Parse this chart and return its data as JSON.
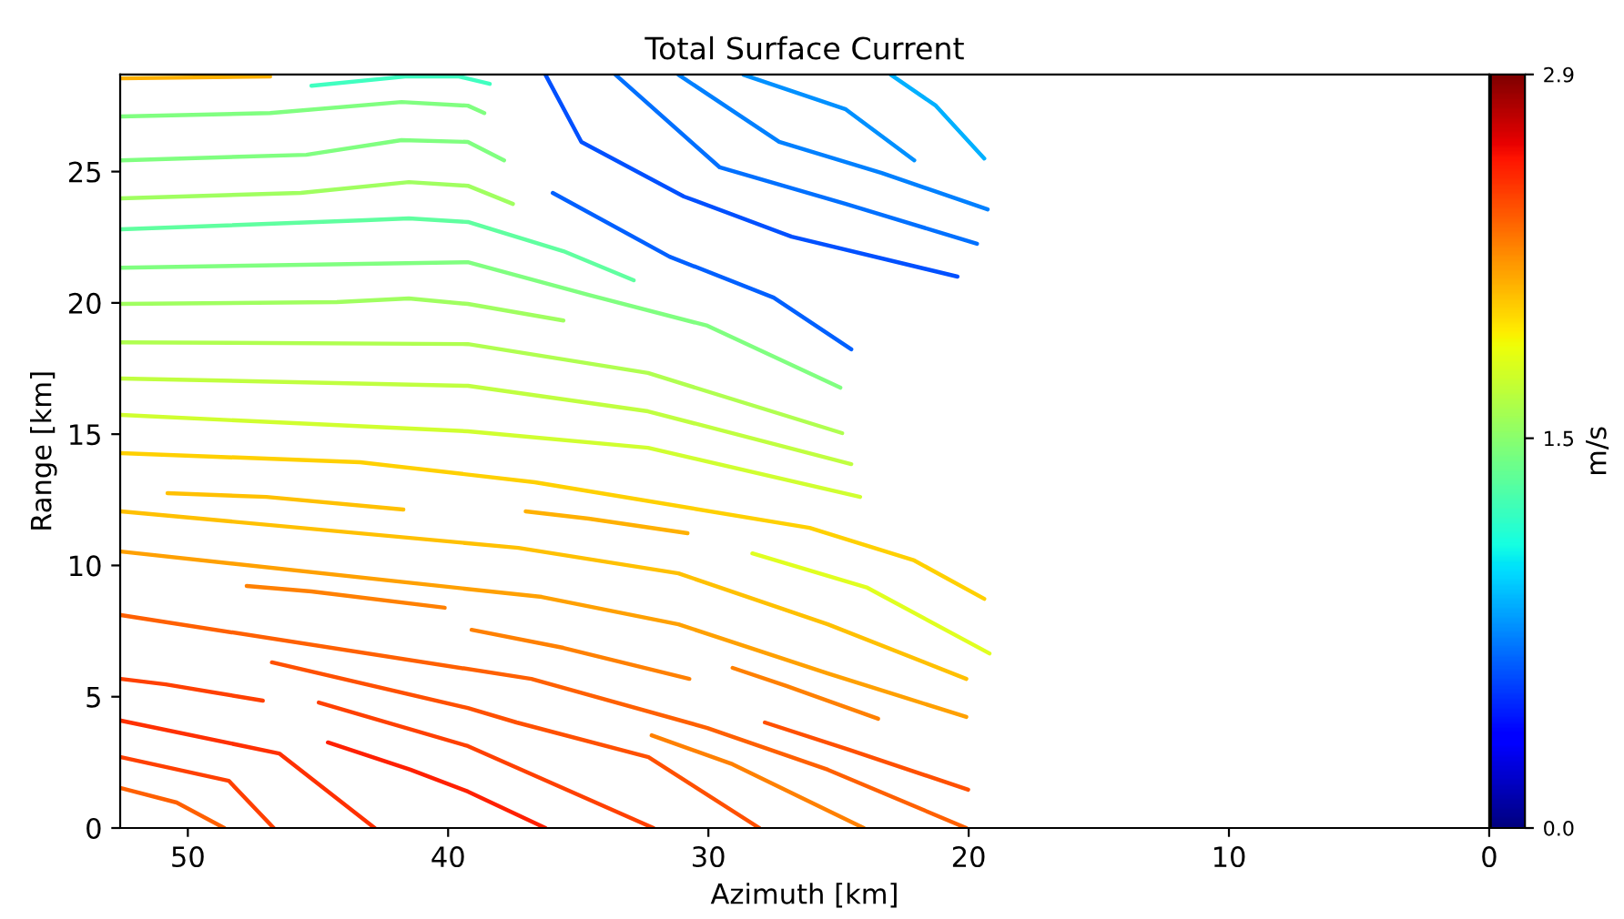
{
  "chart_data": {
    "type": "line",
    "title": "Total Surface Current",
    "xlabel": "Azimuth [km]",
    "ylabel": "Range [km]",
    "clabel": "m/s",
    "xlim": [
      52.6,
      0
    ],
    "ylim": [
      0,
      28.7
    ],
    "xticks": [
      50,
      40,
      30,
      20,
      10,
      0
    ],
    "yticks": [
      0,
      5,
      10,
      15,
      20,
      25
    ],
    "clim": [
      0,
      2.9
    ],
    "cticks": [
      {
        "value": 0,
        "label": "0.0"
      },
      1.5,
      2.9
    ],
    "marker": "none",
    "line_style": "solid",
    "series": [
      {
        "color": "#ffb000",
        "x": [
          52.57,
          46.84
        ],
        "values": [
          28.55,
          28.62
        ]
      },
      {
        "color": "#40ffc0",
        "x": [
          45.25,
          41.65,
          39.58,
          38.4
        ],
        "values": [
          28.27,
          28.62,
          28.62,
          28.34
        ]
      },
      {
        "color": "#80ff80",
        "x": [
          52.57,
          46.84,
          41.79,
          39.24,
          38.61
        ],
        "values": [
          27.1,
          27.23,
          27.65,
          27.51,
          27.23
        ]
      },
      {
        "color": "#80ff80",
        "x": [
          52.57,
          45.45,
          41.79,
          39.24,
          37.85
        ],
        "values": [
          25.43,
          25.64,
          26.2,
          26.13,
          25.43
        ]
      },
      {
        "color": "#a0ff60",
        "x": [
          52.57,
          45.66,
          41.51,
          39.24,
          37.51
        ],
        "values": [
          23.98,
          24.19,
          24.6,
          24.46,
          23.77
        ]
      },
      {
        "color": "#60ffa0",
        "x": [
          52.57,
          43.17,
          41.51,
          39.24,
          35.57,
          32.87
        ],
        "values": [
          22.8,
          23.15,
          23.22,
          23.08,
          21.97,
          20.86
        ]
      },
      {
        "color": "#80ff80",
        "x": [
          52.57,
          39.24,
          34.6,
          30.04,
          24.93
        ],
        "values": [
          21.34,
          21.55,
          20.3,
          19.13,
          16.77
        ]
      },
      {
        "color": "#a0ff60",
        "x": [
          52.57,
          44.28,
          41.51,
          39.24,
          35.57
        ],
        "values": [
          19.96,
          20.03,
          20.17,
          19.96,
          19.33
        ]
      },
      {
        "color": "#b0ff50",
        "x": [
          52.57,
          39.24,
          32.32,
          24.86
        ],
        "values": [
          18.5,
          18.43,
          17.33,
          15.04
        ]
      },
      {
        "color": "#c0ff40",
        "x": [
          52.57,
          39.24,
          32.32,
          24.51
        ],
        "values": [
          17.12,
          16.84,
          15.87,
          13.86
        ]
      },
      {
        "color": "#d0ff30",
        "x": [
          52.57,
          39.24,
          32.32,
          24.17
        ],
        "values": [
          15.73,
          15.11,
          14.48,
          12.61
        ]
      },
      {
        "color": "#ffd000",
        "x": [
          52.57,
          43.38,
          36.67,
          26.11,
          22.09,
          19.4
        ],
        "values": [
          14.28,
          13.93,
          13.17,
          11.43,
          10.19,
          8.73
        ]
      },
      {
        "color": "#ffc000",
        "x": [
          50.78,
          46.98,
          41.72
        ],
        "values": [
          12.75,
          12.61,
          12.13
        ]
      },
      {
        "color": "#ffb000",
        "x": [
          37.02,
          34.6,
          30.8
        ],
        "values": [
          12.06,
          11.78,
          11.23
        ]
      },
      {
        "color": "#ffc000",
        "x": [
          52.57,
          37.3,
          31.15,
          25.41,
          20.09
        ],
        "values": [
          12.06,
          10.67,
          9.7,
          7.76,
          5.68
        ]
      },
      {
        "color": "#e0ff20",
        "x": [
          28.31,
          23.89,
          19.2
        ],
        "values": [
          10.46,
          9.15,
          6.65
        ]
      },
      {
        "color": "#ffa000",
        "x": [
          52.57,
          36.4,
          31.15,
          25.41,
          20.09
        ],
        "values": [
          10.53,
          8.8,
          7.76,
          5.89,
          4.23
        ]
      },
      {
        "color": "#ff8000",
        "x": [
          47.74,
          45.25,
          40.13
        ],
        "values": [
          9.22,
          9.01,
          8.39
        ]
      },
      {
        "color": "#ff8000",
        "x": [
          39.1,
          35.57,
          30.73
        ],
        "values": [
          7.55,
          6.86,
          5.68
        ]
      },
      {
        "color": "#ff6000",
        "x": [
          52.57,
          36.8,
          30.04,
          25.41,
          20.09
        ],
        "values": [
          8.11,
          5.68,
          3.81,
          2.22,
          0
        ]
      },
      {
        "color": "#ff8000",
        "x": [
          29.07,
          27.0,
          23.48
        ],
        "values": [
          6.1,
          5.41,
          4.16
        ]
      },
      {
        "color": "#ff5000",
        "x": [
          27.83,
          24.58,
          20.02
        ],
        "values": [
          4.02,
          2.98,
          1.46
        ]
      },
      {
        "color": "#ff5000",
        "x": [
          46.77,
          39.24,
          37.37,
          32.3,
          28.04
        ],
        "values": [
          6.31,
          4.57,
          4.02,
          2.7,
          0
        ]
      },
      {
        "color": "#ff8000",
        "x": [
          32.18,
          29.07,
          24.03
        ],
        "values": [
          3.53,
          2.43,
          0
        ]
      },
      {
        "color": "#ff4000",
        "x": [
          44.97,
          39.24,
          32.11
        ],
        "values": [
          4.78,
          3.12,
          0
        ]
      },
      {
        "color": "#ff2000",
        "x": [
          44.62,
          41.45,
          39.24,
          36.26
        ],
        "values": [
          3.26,
          2.22,
          1.39,
          0
        ]
      },
      {
        "color": "#ff4000",
        "x": [
          52.57,
          50.85,
          47.12
        ],
        "values": [
          5.68,
          5.47,
          4.85
        ]
      },
      {
        "color": "#ff3000",
        "x": [
          52.57,
          46.49,
          42.82
        ],
        "values": [
          4.09,
          2.84,
          0
        ]
      },
      {
        "color": "#ff4000",
        "x": [
          52.57,
          48.43,
          46.7
        ],
        "values": [
          2.7,
          1.8,
          0
        ]
      },
      {
        "color": "#ff6000",
        "x": [
          52.57,
          50.43,
          48.6
        ],
        "values": [
          1.52,
          0.97,
          0
        ]
      },
      {
        "color": "#0050ff",
        "x": [
          36.26,
          34.88,
          30.94,
          26.8,
          20.43
        ],
        "values": [
          28.69,
          26.13,
          24.05,
          22.52,
          21.0
        ]
      },
      {
        "color": "#0070ff",
        "x": [
          33.57,
          29.56,
          24.72,
          19.68
        ],
        "values": [
          28.69,
          25.16,
          23.77,
          22.25
        ]
      },
      {
        "color": "#0080ff",
        "x": [
          31.15,
          27.28,
          23.34,
          19.27
        ],
        "values": [
          28.69,
          26.13,
          24.95,
          23.56
        ]
      },
      {
        "color": "#0090ff",
        "x": [
          28.66,
          24.72,
          22.09
        ],
        "values": [
          28.69,
          27.37,
          25.43
        ]
      },
      {
        "color": "#00b0ff",
        "x": [
          22.99,
          21.26,
          19.4
        ],
        "values": [
          28.69,
          27.51,
          25.5
        ]
      },
      {
        "color": "#0060ff",
        "x": [
          35.98,
          31.49,
          27.49,
          24.51
        ],
        "values": [
          24.19,
          21.76,
          20.2,
          18.23
        ]
      }
    ]
  }
}
